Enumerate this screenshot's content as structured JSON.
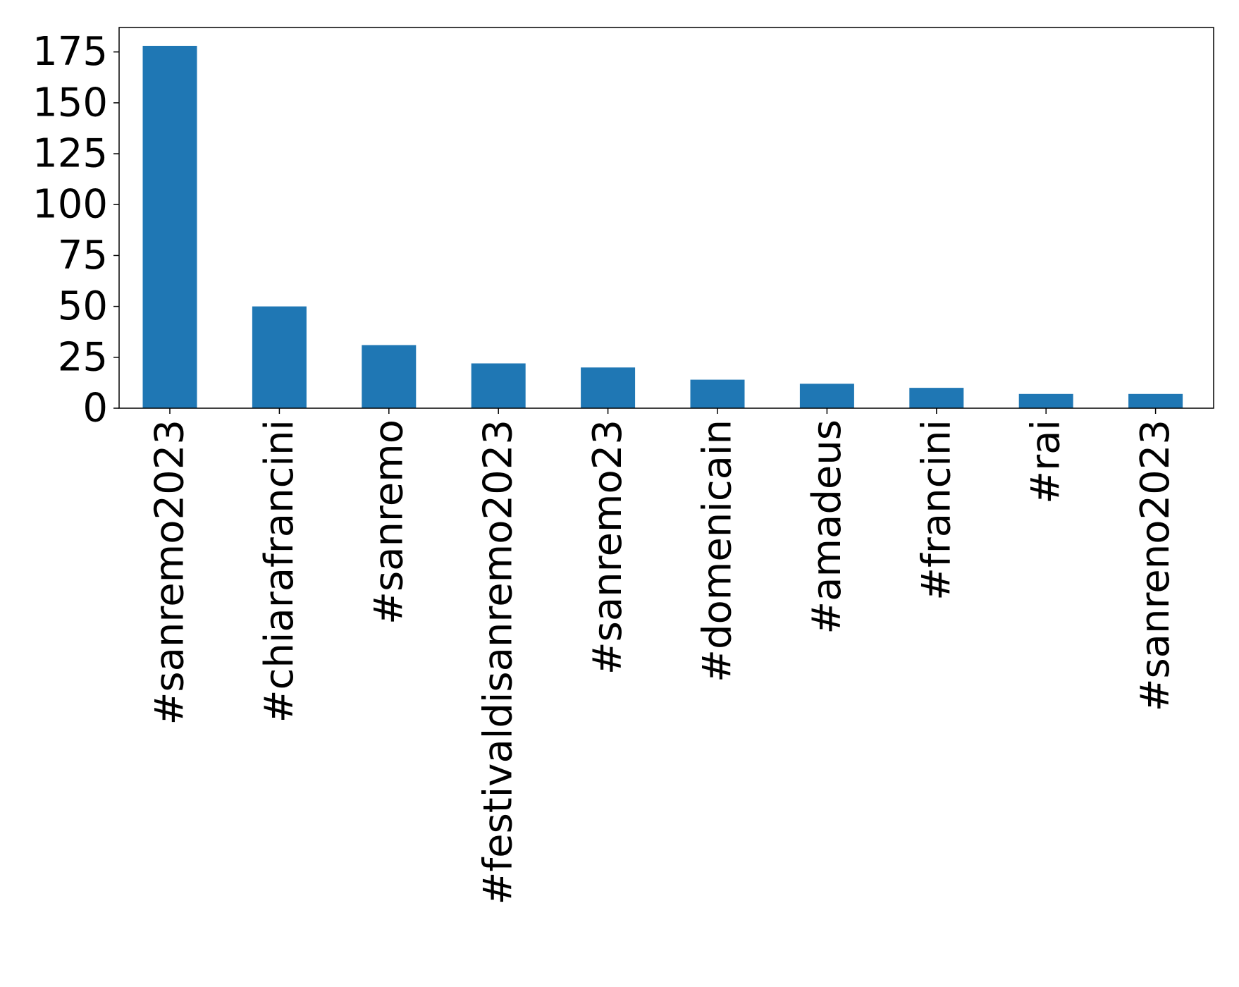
{
  "chart_data": {
    "type": "bar",
    "categories": [
      "#sanremo2023",
      "#chiarafrancini",
      "#sanremo",
      "#festivaldisanremo2023",
      "#sanremo23",
      "#domenicain",
      "#amadeus",
      "#francini",
      "#rai",
      "#sanreno2023"
    ],
    "values": [
      178,
      50,
      31,
      22,
      20,
      14,
      12,
      10,
      7,
      7
    ],
    "title": "",
    "xlabel": "",
    "ylabel": "",
    "ylim": [
      0,
      187
    ],
    "yticks": [
      0,
      25,
      50,
      75,
      100,
      125,
      150,
      175
    ],
    "bar_color": "#1f77b4",
    "grid": false,
    "legend": "none"
  }
}
